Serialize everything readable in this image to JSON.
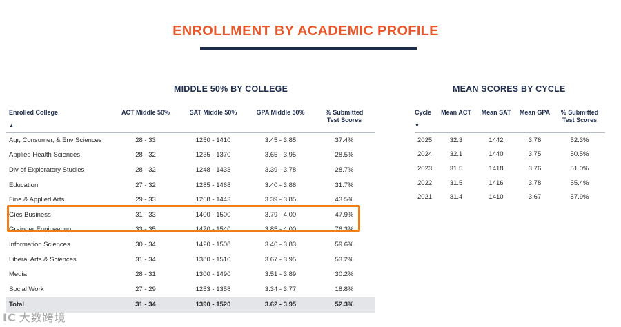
{
  "page": {
    "title": "ENROLLMENT BY ACADEMIC PROFILE"
  },
  "colors": {
    "title": "#e8572b",
    "navy": "#1f2d4d",
    "highlight": "#f07d15",
    "total_row_bg": "#e4e5e8"
  },
  "college_section": {
    "title": "MIDDLE 50% BY COLLEGE",
    "headers": {
      "college": "Enrolled College",
      "act": "ACT Middle 50%",
      "sat": "SAT Middle 50%",
      "gpa": "GPA Middle 50%",
      "submitted_1": "% Submitted",
      "submitted_2": "Test Scores"
    },
    "sort_icon": "sort-ascending-icon",
    "rows": [
      {
        "college": "Agr, Consumer, & Env Sciences",
        "act": "28 - 33",
        "sat": "1250 - 1410",
        "gpa": "3.45 - 3.85",
        "submitted": "37.4%"
      },
      {
        "college": "Applied Health Sciences",
        "act": "28 - 32",
        "sat": "1235 - 1370",
        "gpa": "3.65 - 3.95",
        "submitted": "28.5%"
      },
      {
        "college": "Div of Exploratory Studies",
        "act": "28 - 32",
        "sat": "1248 - 1433",
        "gpa": "3.39 - 3.78",
        "submitted": "28.7%"
      },
      {
        "college": "Education",
        "act": "27 - 32",
        "sat": "1285 - 1468",
        "gpa": "3.40 - 3.86",
        "submitted": "31.7%"
      },
      {
        "college": "Fine & Applied Arts",
        "act": "29 - 33",
        "sat": "1268 - 1443",
        "gpa": "3.39 - 3.85",
        "submitted": "43.5%"
      },
      {
        "college": "Gies Business",
        "act": "31 - 33",
        "sat": "1400 - 1500",
        "gpa": "3.79 - 4.00",
        "submitted": "47.9%"
      },
      {
        "college": "Grainger Engineering",
        "act": "33 - 35",
        "sat": "1470 - 1540",
        "gpa": "3.85 - 4.00",
        "submitted": "76.3%"
      },
      {
        "college": "Information Sciences",
        "act": "30 - 34",
        "sat": "1420 - 1508",
        "gpa": "3.46 - 3.83",
        "submitted": "59.6%"
      },
      {
        "college": "Liberal Arts & Sciences",
        "act": "31 - 34",
        "sat": "1380 - 1510",
        "gpa": "3.67 - 3.95",
        "submitted": "53.2%"
      },
      {
        "college": "Media",
        "act": "28 - 31",
        "sat": "1300 - 1490",
        "gpa": "3.51 - 3.89",
        "submitted": "30.2%"
      },
      {
        "college": "Social Work",
        "act": "27 - 29",
        "sat": "1253 - 1358",
        "gpa": "3.34 - 3.77",
        "submitted": "18.8%"
      }
    ],
    "total": {
      "college": "Total",
      "act": "31 - 34",
      "sat": "1390 - 1520",
      "gpa": "3.62 - 3.95",
      "submitted": "52.3%"
    },
    "highlighted": [
      "Gies Business",
      "Grainger Engineering"
    ]
  },
  "cycle_section": {
    "title": "MEAN SCORES BY CYCLE",
    "headers": {
      "cycle": "Cycle",
      "act": "Mean ACT",
      "sat": "Mean SAT",
      "gpa": "Mean GPA",
      "submitted_1": "% Submitted",
      "submitted_2": "Test Scores"
    },
    "sort_icon": "sort-descending-icon",
    "rows": [
      {
        "cycle": "2025",
        "act": "32.3",
        "sat": "1442",
        "gpa": "3.76",
        "submitted": "52.3%"
      },
      {
        "cycle": "2024",
        "act": "32.1",
        "sat": "1440",
        "gpa": "3.75",
        "submitted": "50.5%"
      },
      {
        "cycle": "2023",
        "act": "31.5",
        "sat": "1418",
        "gpa": "3.76",
        "submitted": "51.0%"
      },
      {
        "cycle": "2022",
        "act": "31.5",
        "sat": "1416",
        "gpa": "3.78",
        "submitted": "55.4%"
      },
      {
        "cycle": "2021",
        "act": "31.4",
        "sat": "1410",
        "gpa": "3.67",
        "submitted": "57.9%"
      }
    ]
  },
  "watermark": {
    "logo": "IC",
    "text": "大数跨境"
  }
}
